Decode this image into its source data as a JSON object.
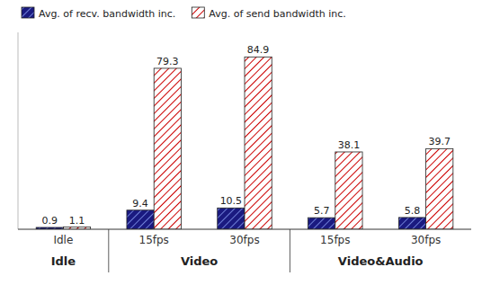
{
  "chart_data": {
    "type": "bar",
    "categories": [
      "Idle",
      "15fps",
      "30fps",
      "15fps",
      "30fps"
    ],
    "series": [
      {
        "name": "Avg. of recv. bandwidth inc.",
        "color": "#1a1a80",
        "values": [
          0.9,
          9.4,
          10.5,
          5.7,
          5.8
        ]
      },
      {
        "name": "Avg. of send bandwidth inc.",
        "color": "#cc0000",
        "values": [
          1.1,
          79.3,
          84.9,
          38.1,
          39.7
        ]
      }
    ],
    "annotations": [
      "Idle",
      "Video",
      "Video&Audio"
    ],
    "ylim": [
      0,
      97
    ],
    "data_labels": true,
    "tick_labels": "x",
    "legend": "upper left",
    "grid": false
  }
}
